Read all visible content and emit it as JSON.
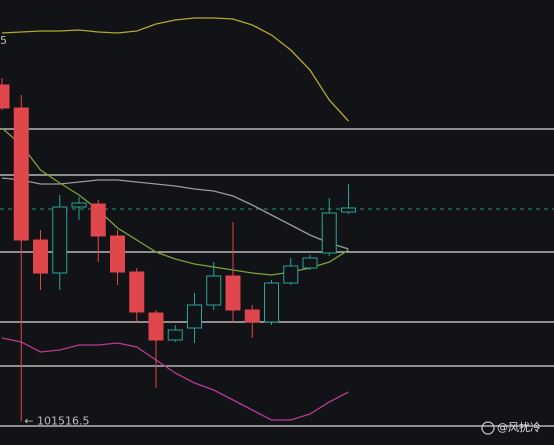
{
  "chart_data": {
    "type": "candlestick",
    "ylim": [
      101280,
      105730
    ],
    "axis_fragment": "5",
    "low_label": "← 101516.5",
    "watermark": "@风扰冷",
    "up_color": "#26a69a",
    "down_color": "#e0474c",
    "candles": {
      "open": [
        104880,
        104650,
        103330,
        103000,
        103660,
        103690,
        103370,
        103010,
        102600,
        102330,
        102450,
        102680,
        102970,
        102630,
        102510,
        102900,
        103050,
        103200,
        103610
      ],
      "high": [
        104950,
        104780,
        103430,
        103780,
        103760,
        103730,
        103430,
        103050,
        102630,
        102480,
        102800,
        103110,
        103510,
        102680,
        102930,
        103150,
        103180,
        103750,
        103890
      ],
      "low": [
        104630,
        101516.5,
        102830,
        102830,
        103530,
        103110,
        102880,
        102510,
        101850,
        102310,
        102300,
        102630,
        102510,
        102350,
        102480,
        102880,
        103030,
        103170,
        103590
      ],
      "close": [
        104650,
        103330,
        103000,
        103660,
        103700,
        103370,
        103010,
        102610,
        102330,
        102430,
        102680,
        102970,
        102630,
        102510,
        102900,
        103070,
        103150,
        103600,
        103650
      ]
    },
    "series": [
      {
        "color": "#b5a82a",
        "values": [
          105400,
          105410,
          105420,
          105420,
          105430,
          105410,
          105400,
          105420,
          105490,
          105530,
          105550,
          105550,
          105540,
          105480,
          105380,
          105230,
          105030,
          104730,
          104520
        ]
      },
      {
        "color": "#9a9a9a",
        "values": [
          103950,
          103930,
          103890,
          103890,
          103910,
          103930,
          103930,
          103910,
          103890,
          103870,
          103840,
          103820,
          103770,
          103680,
          103580,
          103480,
          103380,
          103300,
          103240
        ]
      },
      {
        "color": "#7aa33a",
        "values": [
          104450,
          104280,
          104030,
          103900,
          103780,
          103630,
          103450,
          103330,
          103210,
          103140,
          103090,
          103060,
          103030,
          103000,
          102980,
          103010,
          103050,
          103110,
          103230
        ]
      },
      {
        "color": "#b83a94",
        "values": [
          102350,
          102310,
          102210,
          102230,
          102280,
          102280,
          102300,
          102260,
          102130,
          102000,
          101900,
          101830,
          101730,
          101630,
          101530,
          101530,
          101590,
          101710,
          101810
        ]
      }
    ],
    "levels": [
      104440,
      103980,
      103210,
      102510,
      102070,
      101470
    ],
    "level_color": "#d8d8d8",
    "dashed_level": 103640,
    "dashed_color": "#2a8f7a"
  }
}
